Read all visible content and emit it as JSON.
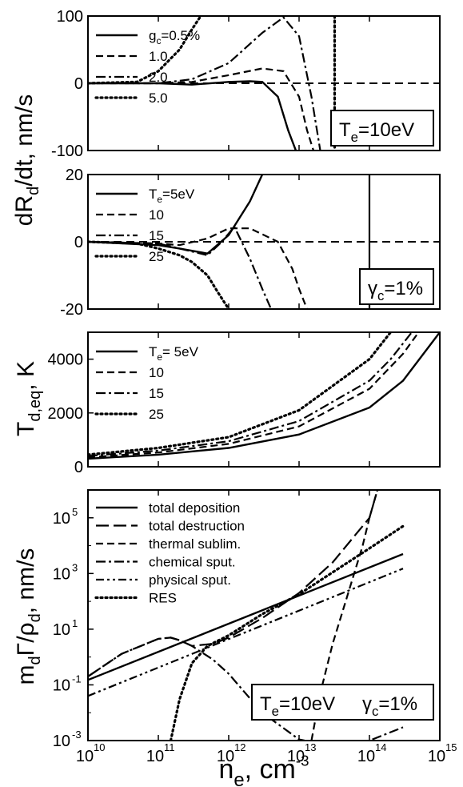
{
  "chart_data": [
    {
      "type": "line",
      "panel": "a",
      "ylabel": "dR_d/dt, nm/s",
      "ylim": [
        -100,
        100
      ],
      "yticks": [
        "100",
        "0",
        "-100"
      ],
      "xscale": "log",
      "xlim": [
        10000000000.0,
        1000000000000000.0
      ],
      "annotation": {
        "main": "T",
        "sub": "e",
        "rest": "=10eV"
      },
      "legend": {
        "placement": "top-left"
      },
      "reference_line_y": 0,
      "series": [
        {
          "name": "g_c=0.5%",
          "label_parts": {
            "main": "g",
            "sub": "c",
            "rest": "=0.5%"
          },
          "dash": "solid",
          "x": [
            10000000000.0,
            100000000000.0,
            300000000000.0,
            1000000000000.0,
            2000000000000.0,
            3000000000000.0,
            5000000000000.0,
            7000000000000.0,
            9000000000000.0
          ],
          "y": [
            0,
            0,
            -2,
            2,
            3,
            2,
            -20,
            -70,
            -100
          ]
        },
        {
          "name": "1.0",
          "label_parts": {
            "main": "1.0"
          },
          "dash": "dash",
          "x": [
            10000000000.0,
            100000000000.0,
            300000000000.0,
            1000000000000.0,
            3000000000000.0,
            6000000000000.0,
            10000000000000.0,
            13000000000000.0,
            16000000000000.0
          ],
          "y": [
            0,
            0,
            2,
            12,
            22,
            18,
            -20,
            -70,
            -100
          ]
        },
        {
          "name": "2.0",
          "label_parts": {
            "main": "2.0"
          },
          "dash": "dashdot",
          "x": [
            10000000000.0,
            100000000000.0,
            300000000000.0,
            1000000000000.0,
            3000000000000.0,
            6000000000000.0,
            10000000000000.0,
            15000000000000.0,
            20000000000000.0
          ],
          "y": [
            0,
            0,
            6,
            30,
            75,
            98,
            70,
            -20,
            -100
          ]
        },
        {
          "name": "5.0",
          "label_parts": {
            "main": "5.0"
          },
          "dash": "dot",
          "x": [
            10000000000.0,
            50000000000.0,
            100000000000.0,
            200000000000.0,
            300000000000.0,
            400000000000.0
          ],
          "y": [
            0,
            2,
            18,
            50,
            80,
            100
          ]
        }
      ],
      "vertical_line": {
        "x": 32000000000000.0,
        "dash": "dot"
      }
    },
    {
      "type": "line",
      "panel": "b",
      "ylabel": "dR_d/dt, nm/s",
      "ylim": [
        -20,
        20
      ],
      "yticks": [
        "20",
        "0",
        "-20"
      ],
      "xscale": "log",
      "xlim": [
        10000000000.0,
        1000000000000000.0
      ],
      "annotation": {
        "main": "γ",
        "sub": "c",
        "rest": "=1%"
      },
      "legend": {
        "placement": "top-left"
      },
      "reference_line_y": 0,
      "series": [
        {
          "name": "T_e=5eV",
          "label_parts": {
            "main": "T",
            "sub": "e",
            "rest": "=5eV"
          },
          "dash": "solid",
          "x": [
            10000000000.0,
            100000000000.0,
            200000000000.0,
            500000000000.0,
            1000000000000.0,
            2000000000000.0,
            3000000000000.0
          ],
          "y": [
            0,
            -1,
            -2,
            -3.5,
            2,
            12,
            20
          ]
        },
        {
          "name": "10",
          "label_parts": {
            "main": "10"
          },
          "dash": "dash",
          "x": [
            10000000000.0,
            100000000000.0,
            200000000000.0,
            500000000000.0,
            1000000000000.0,
            2000000000000.0,
            5000000000000.0,
            8000000000000.0,
            10000000000000.0,
            13000000000000.0
          ],
          "y": [
            0,
            -0.5,
            -1,
            1,
            4,
            4,
            0,
            -8,
            -14,
            -20
          ]
        },
        {
          "name": "15",
          "label_parts": {
            "main": "15"
          },
          "dash": "dashdot",
          "x": [
            10000000000.0,
            100000000000.0,
            200000000000.0,
            500000000000.0,
            800000000000.0,
            1200000000000.0,
            2000000000000.0,
            3000000000000.0,
            4000000000000.0
          ],
          "y": [
            0,
            -0.5,
            -2,
            -4,
            0,
            4.5,
            -5,
            -14,
            -20
          ]
        },
        {
          "name": "25",
          "label_parts": {
            "main": "25"
          },
          "dash": "dot",
          "x": [
            10000000000.0,
            50000000000.0,
            100000000000.0,
            200000000000.0,
            300000000000.0,
            500000000000.0,
            700000000000.0,
            1000000000000.0
          ],
          "y": [
            0,
            -0.5,
            -2,
            -4,
            -6,
            -10,
            -15,
            -20
          ]
        }
      ],
      "vertical_line": {
        "x": 100000000000000.0,
        "dash": "solid"
      }
    },
    {
      "type": "line",
      "panel": "c",
      "ylabel": "T_d,eq, K",
      "ylim": [
        0,
        5000
      ],
      "yticks": [
        "4000",
        "2000",
        "0"
      ],
      "xscale": "log",
      "xlim": [
        10000000000.0,
        1000000000000000.0
      ],
      "legend": {
        "placement": "top-left"
      },
      "series": [
        {
          "name": "T_e= 5eV",
          "label_parts": {
            "main": "T",
            "sub": "e",
            "rest": "= 5eV"
          },
          "dash": "solid",
          "x": [
            10000000000.0,
            100000000000.0,
            1000000000000.0,
            10000000000000.0,
            100000000000000.0,
            300000000000000.0,
            1000000000000000.0
          ],
          "y": [
            300,
            450,
            700,
            1200,
            2200,
            3200,
            5000
          ]
        },
        {
          "name": "10",
          "label_parts": {
            "main": "10"
          },
          "dash": "dash",
          "x": [
            10000000000.0,
            100000000000.0,
            1000000000000.0,
            10000000000000.0,
            100000000000000.0,
            300000000000000.0,
            500000000000000.0
          ],
          "y": [
            350,
            530,
            850,
            1500,
            2900,
            4200,
            5000
          ]
        },
        {
          "name": "15",
          "label_parts": {
            "main": "15"
          },
          "dash": "dashdot",
          "x": [
            10000000000.0,
            100000000000.0,
            1000000000000.0,
            10000000000000.0,
            100000000000000.0,
            200000000000000.0,
            400000000000000.0
          ],
          "y": [
            400,
            600,
            950,
            1700,
            3200,
            4000,
            5000
          ]
        },
        {
          "name": "25",
          "label_parts": {
            "main": "25"
          },
          "dash": "dot",
          "x": [
            10000000000.0,
            100000000000.0,
            1000000000000.0,
            10000000000000.0,
            100000000000000.0,
            200000000000000.0
          ],
          "y": [
            450,
            700,
            1100,
            2100,
            4000,
            5000
          ]
        }
      ]
    },
    {
      "type": "line",
      "panel": "d",
      "ylabel": "m_dΓ/ρ_d, nm/s",
      "yscale": "log",
      "ylim": [
        0.001,
        1000000.0
      ],
      "yticks": [
        {
          "base": "10",
          "exp": "5",
          "value": 100000.0
        },
        {
          "base": "10",
          "exp": "3",
          "value": 1000.0
        },
        {
          "base": "10",
          "exp": "1",
          "value": 10.0
        },
        {
          "base": "10",
          "exp": "-1",
          "value": 0.1
        },
        {
          "base": "10",
          "exp": "-3",
          "value": 0.001
        }
      ],
      "xscale": "log",
      "xlim": [
        10000000000.0,
        1000000000000000.0
      ],
      "xticks": [
        {
          "base": "10",
          "exp": "10",
          "value": 10000000000.0
        },
        {
          "base": "10",
          "exp": "11",
          "value": 100000000000.0
        },
        {
          "base": "10",
          "exp": "12",
          "value": 1000000000000.0
        },
        {
          "base": "10",
          "exp": "13",
          "value": 10000000000000.0
        },
        {
          "base": "10",
          "exp": "14",
          "value": 100000000000000.0
        },
        {
          "base": "10",
          "exp": "15",
          "value": 1000000000000000.0
        }
      ],
      "xlabel": {
        "main": "n",
        "sub": "e",
        "rest": ", cm",
        "sup": "-3"
      },
      "annotation": {
        "parts": [
          {
            "main": "T",
            "sub": "e",
            "rest": "=10eV"
          },
          {
            "main": "γ",
            "sub": "c",
            "rest": "=1%"
          }
        ]
      },
      "legend": {
        "placement": "top-left"
      },
      "series": [
        {
          "name": "total deposition",
          "dash": "solid",
          "x": [
            10000000000.0,
            300000000000000.0
          ],
          "y": [
            0.15,
            5000
          ]
        },
        {
          "name": "total destruction",
          "dash": "longdash",
          "x": [
            10000000000.0,
            30000000000.0,
            100000000000.0,
            150000000000.0,
            200000000000.0,
            300000000000.0,
            600000000000.0,
            1000000000000.0,
            3000000000000.0,
            10000000000000.0,
            30000000000000.0,
            100000000000000.0,
            130000000000000.0
          ],
          "y": [
            0.2,
            1.3,
            4.5,
            5,
            4,
            2.5,
            3,
            5,
            25,
            200,
            2500,
            100000.0,
            1000000.0
          ]
        },
        {
          "name": "thermal sublim.",
          "dash": "dash",
          "x": [
            15000000000000.0,
            20000000000000.0,
            30000000000000.0,
            50000000000000.0,
            80000000000000.0,
            100000000000000.0,
            130000000000000.0
          ],
          "y": [
            0.001,
            0.05,
            3,
            200,
            10000.0,
            100000.0,
            1000000.0
          ]
        },
        {
          "name": "chemical sput.",
          "dash": "dashdot",
          "x": [
            10000000000.0,
            30000000000.0,
            100000000000.0,
            150000000000.0,
            200000000000.0,
            300000000000.0,
            600000000000.0,
            1000000000000.0,
            3000000000000.0,
            10000000000000.0,
            12000000000000.0
          ],
          "y": [
            0.2,
            1.3,
            4.5,
            5,
            4,
            2.5,
            0.8,
            0.25,
            0.01,
            0.0011,
            0.001
          ]
        },
        {
          "name": "physical sput.",
          "dash": "dashdotdot",
          "x": [
            10000000000.0,
            300000000000000.0
          ],
          "y": [
            0.04,
            1500
          ]
        },
        {
          "name": "RES",
          "dash": "dot",
          "x": [
            150000000000.0,
            200000000000.0,
            300000000000.0,
            500000000000.0,
            1000000000000.0,
            3000000000000.0,
            10000000000000.0,
            100000000000000.0,
            300000000000000.0
          ],
          "y": [
            0.001,
            0.03,
            0.6,
            2.5,
            6,
            35,
            180,
            8000,
            50000
          ]
        }
      ],
      "extra_segment": {
        "x": [
          110000000000000.0,
          300000000000000.0
        ],
        "y": [
          0.0011,
          0.003
        ],
        "dash": "dashdot"
      }
    }
  ]
}
